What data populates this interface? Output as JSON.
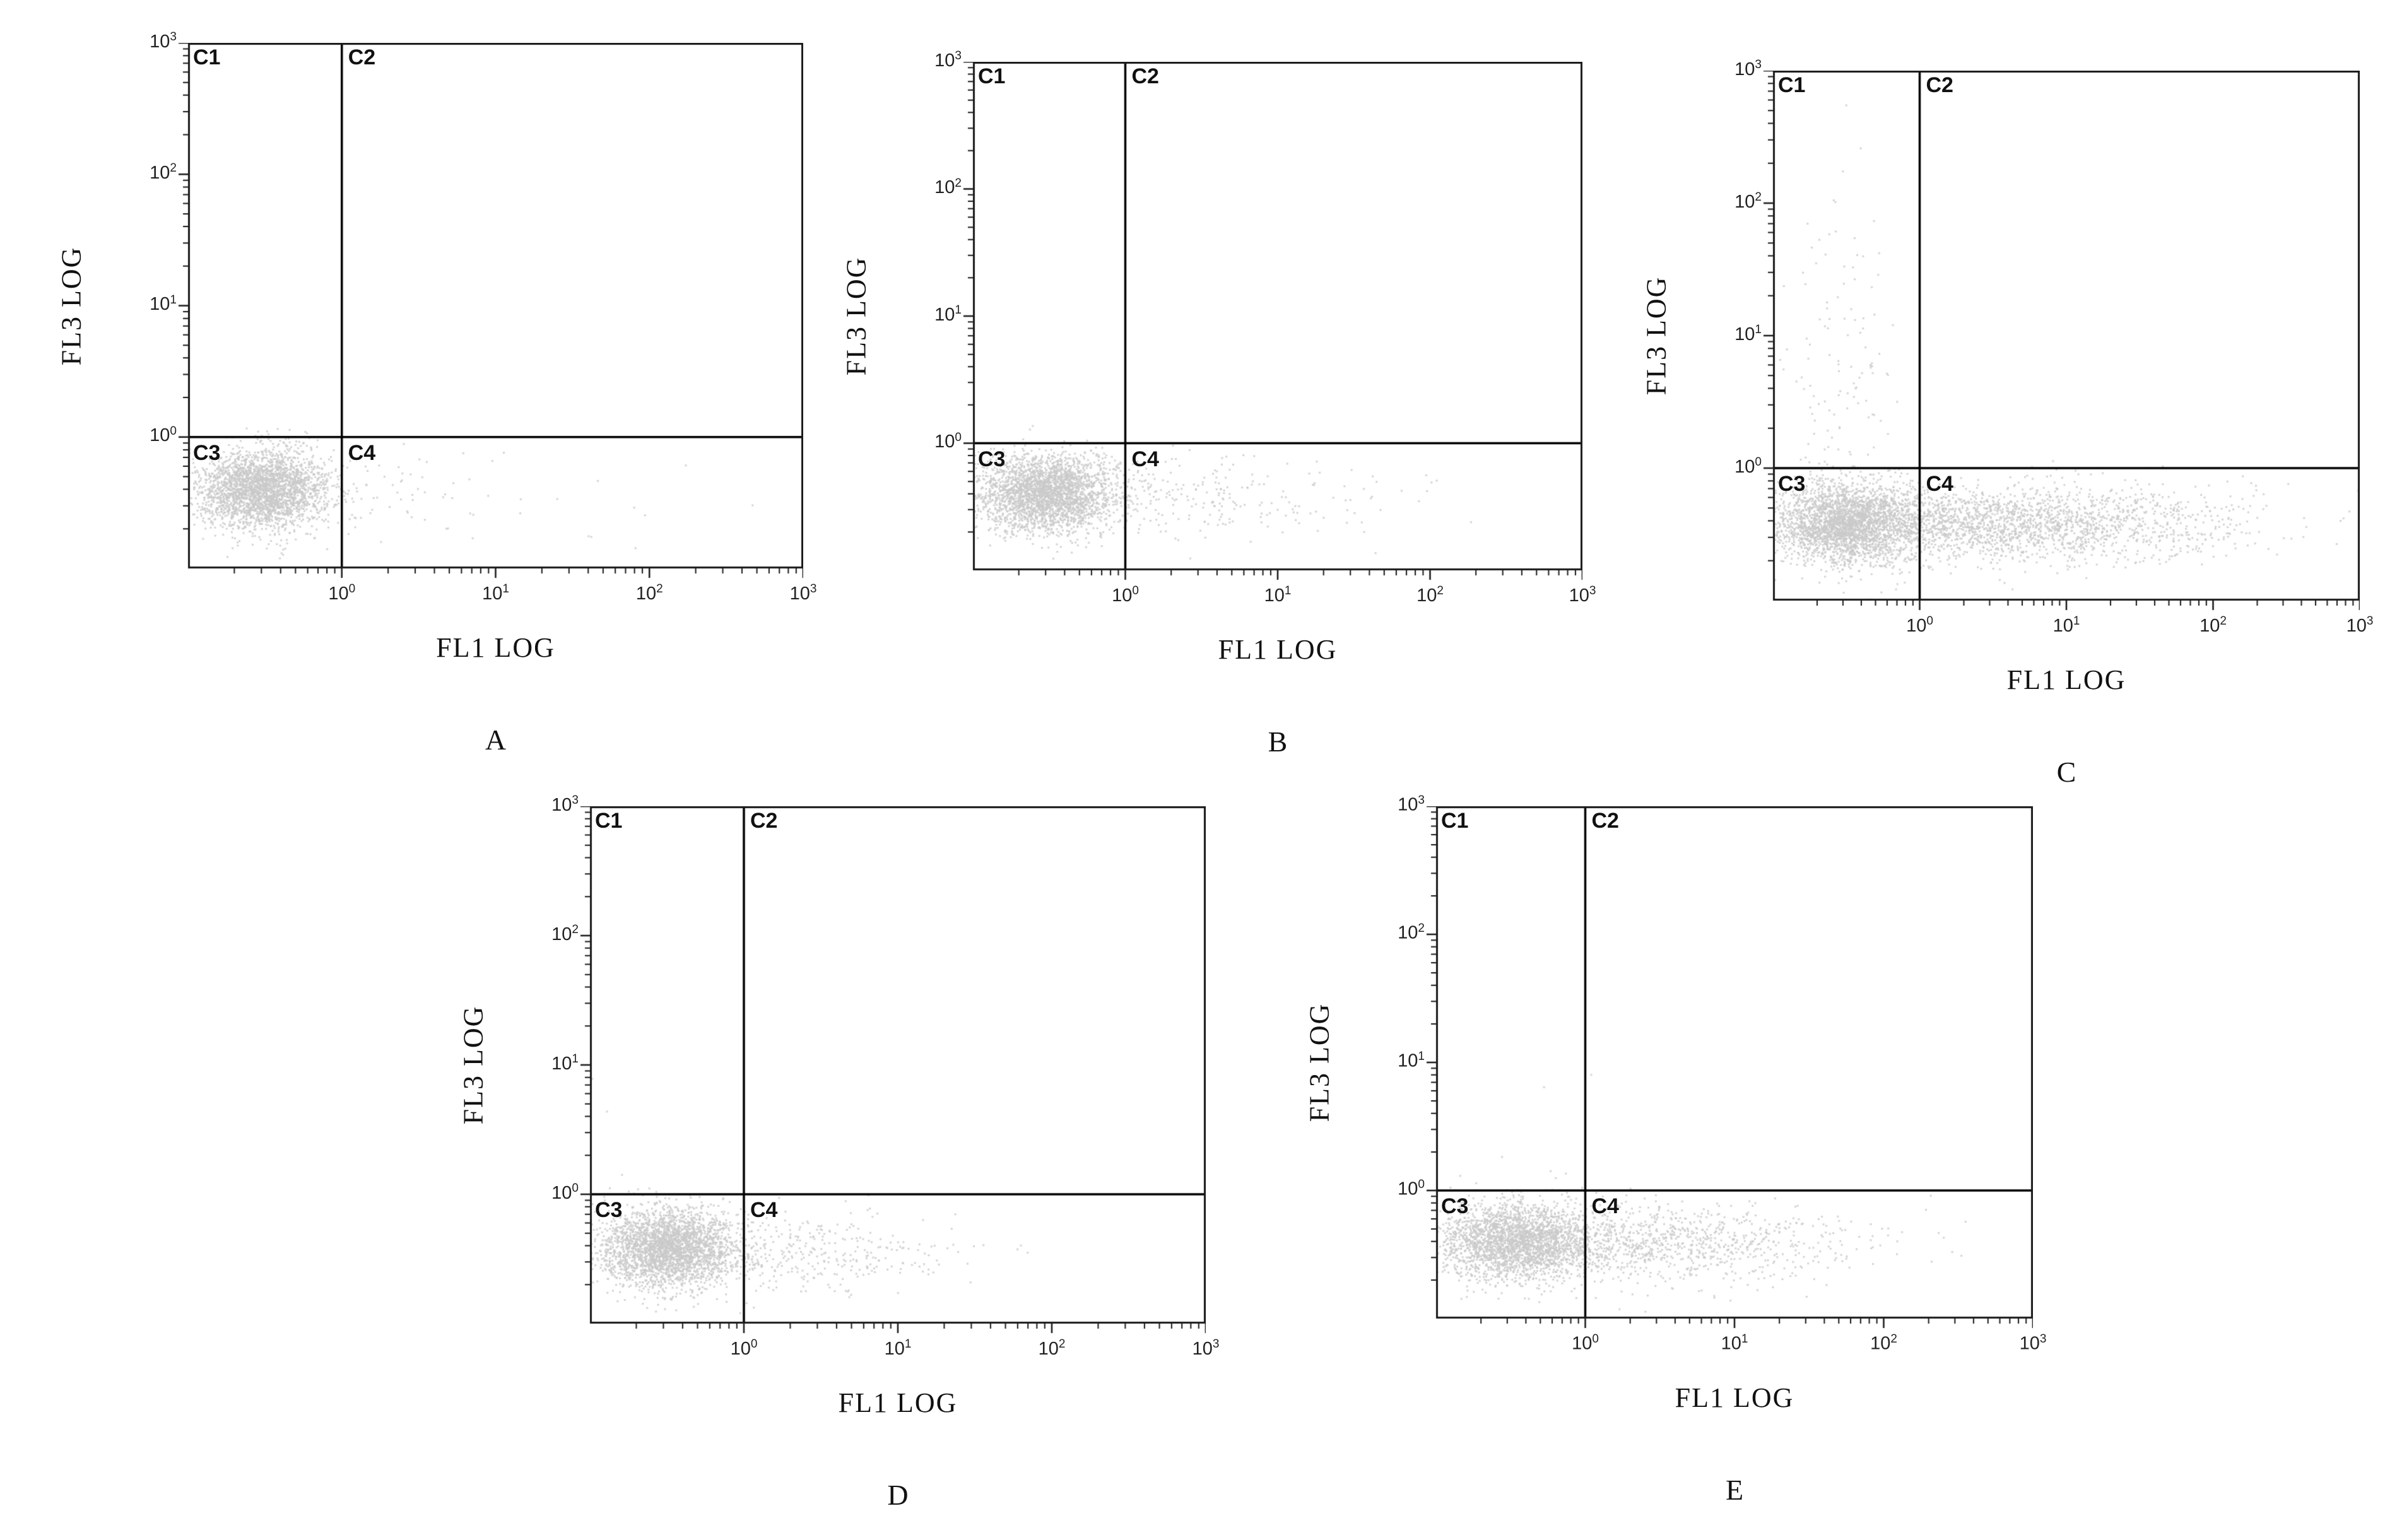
{
  "chart_data": [
    {
      "type": "scatter",
      "panel_label": "A",
      "x_axis": {
        "label": "FL1 LOG",
        "scale": "log",
        "base": "10",
        "tick_exponents": [
          "0",
          "1",
          "2",
          "3"
        ],
        "log_min": -1,
        "log_max": 3
      },
      "y_axis": {
        "label": "FL3 LOG",
        "scale": "log",
        "base": "10",
        "tick_exponents": [
          "0",
          "1",
          "2",
          "3"
        ],
        "log_min": -1,
        "log_max": 3
      },
      "gates": {
        "x_log": 0,
        "y_log": 0
      },
      "quadrant_labels": {
        "top_left": "C1",
        "top_right": "C2",
        "bottom_left": "C3",
        "bottom_right": "C4"
      },
      "dot_color": "#c9c9c9",
      "clusters": [
        {
          "name": "main-population",
          "cx": -0.52,
          "cy": -0.4,
          "sx": 0.21,
          "sy": 0.15,
          "n": 2800
        },
        {
          "name": "fl1-positive-tail",
          "cx": 0.15,
          "cy": -0.44,
          "sx": 0.55,
          "sy": 0.15,
          "n": 90
        },
        {
          "name": "sparse-right-strays",
          "cx": 1.5,
          "cy": -0.45,
          "sx": 0.5,
          "sy": 0.2,
          "n": 12
        }
      ]
    },
    {
      "type": "scatter",
      "panel_label": "B",
      "x_axis": {
        "label": "FL1 LOG",
        "scale": "log",
        "base": "10",
        "tick_exponents": [
          "0",
          "1",
          "2",
          "3"
        ],
        "log_min": -1,
        "log_max": 3
      },
      "y_axis": {
        "label": "FL3 LOG",
        "scale": "log",
        "base": "10",
        "tick_exponents": [
          "0",
          "1",
          "2",
          "3"
        ],
        "log_min": -1,
        "log_max": 3
      },
      "gates": {
        "x_log": 0,
        "y_log": 0
      },
      "quadrant_labels": {
        "top_left": "C1",
        "top_right": "C2",
        "bottom_left": "C3",
        "bottom_right": "C4"
      },
      "dot_color": "#c9c9c9",
      "clusters": [
        {
          "name": "main-population",
          "cx": -0.52,
          "cy": -0.4,
          "sx": 0.22,
          "sy": 0.15,
          "n": 2800
        },
        {
          "name": "fl1-positive-tail",
          "cx": 0.3,
          "cy": -0.42,
          "sx": 0.55,
          "sy": 0.16,
          "n": 260
        },
        {
          "name": "sparse-right-strays",
          "cx": 1.6,
          "cy": -0.4,
          "sx": 0.4,
          "sy": 0.2,
          "n": 15
        }
      ]
    },
    {
      "type": "scatter",
      "panel_label": "C",
      "x_axis": {
        "label": "FL1 LOG",
        "scale": "log",
        "base": "10",
        "tick_exponents": [
          "0",
          "1",
          "2",
          "3"
        ],
        "log_min": -1,
        "log_max": 3
      },
      "y_axis": {
        "label": "FL3 LOG",
        "scale": "log",
        "base": "10",
        "tick_exponents": [
          "0",
          "1",
          "2",
          "3"
        ],
        "log_min": -1,
        "log_max": 3
      },
      "gates": {
        "x_log": 0,
        "y_log": 0
      },
      "quadrant_labels": {
        "top_left": "C1",
        "top_right": "C2",
        "bottom_left": "C3",
        "bottom_right": "C4"
      },
      "dot_color": "#c9c9c9",
      "clusters": [
        {
          "name": "main-population",
          "cx": -0.5,
          "cy": -0.42,
          "sx": 0.24,
          "sy": 0.15,
          "n": 2600
        },
        {
          "name": "fl1-positive-band",
          "cx": 0.55,
          "cy": -0.42,
          "sx": 0.75,
          "sy": 0.14,
          "n": 2400
        },
        {
          "name": "upper-left-scatter",
          "cx": -0.55,
          "cy": 0.7,
          "sx": 0.2,
          "sy": 0.75,
          "n": 130
        }
      ]
    },
    {
      "type": "scatter",
      "panel_label": "D",
      "x_axis": {
        "label": "FL1 LOG",
        "scale": "log",
        "base": "10",
        "tick_exponents": [
          "0",
          "1",
          "2",
          "3"
        ],
        "log_min": -1,
        "log_max": 3
      },
      "y_axis": {
        "label": "FL3 LOG",
        "scale": "log",
        "base": "10",
        "tick_exponents": [
          "0",
          "1",
          "2",
          "3"
        ],
        "log_min": -1,
        "log_max": 3
      },
      "gates": {
        "x_log": 0,
        "y_log": 0
      },
      "quadrant_labels": {
        "top_left": "C1",
        "top_right": "C2",
        "bottom_left": "C3",
        "bottom_right": "C4"
      },
      "dot_color": "#c9c9c9",
      "clusters": [
        {
          "name": "main-population",
          "cx": -0.5,
          "cy": -0.42,
          "sx": 0.22,
          "sy": 0.15,
          "n": 2800
        },
        {
          "name": "fl1-positive-tail",
          "cx": 0.35,
          "cy": -0.45,
          "sx": 0.5,
          "sy": 0.15,
          "n": 420
        },
        {
          "name": "upper-strays",
          "cx": -0.3,
          "cy": 0.3,
          "sx": 0.5,
          "sy": 0.6,
          "n": 6
        }
      ]
    },
    {
      "type": "scatter",
      "panel_label": "E",
      "x_axis": {
        "label": "FL1 LOG",
        "scale": "log",
        "base": "10",
        "tick_exponents": [
          "0",
          "1",
          "2",
          "3"
        ],
        "log_min": -1,
        "log_max": 3
      },
      "y_axis": {
        "label": "FL3 LOG",
        "scale": "log",
        "base": "10",
        "tick_exponents": [
          "0",
          "1",
          "2",
          "3"
        ],
        "log_min": -1,
        "log_max": 3
      },
      "gates": {
        "x_log": 0,
        "y_log": 0
      },
      "quadrant_labels": {
        "top_left": "C1",
        "top_right": "C2",
        "bottom_left": "C3",
        "bottom_right": "C4"
      },
      "dot_color": "#c9c9c9",
      "clusters": [
        {
          "name": "main-population",
          "cx": -0.45,
          "cy": -0.4,
          "sx": 0.26,
          "sy": 0.15,
          "n": 2500
        },
        {
          "name": "fl1-positive-band",
          "cx": 0.5,
          "cy": -0.42,
          "sx": 0.6,
          "sy": 0.15,
          "n": 1000
        },
        {
          "name": "sparse-right-strays",
          "cx": 1.8,
          "cy": -0.4,
          "sx": 0.4,
          "sy": 0.25,
          "n": 18
        },
        {
          "name": "upper-strays",
          "cx": -0.5,
          "cy": 0.4,
          "sx": 0.3,
          "sy": 0.5,
          "n": 5
        }
      ]
    }
  ]
}
